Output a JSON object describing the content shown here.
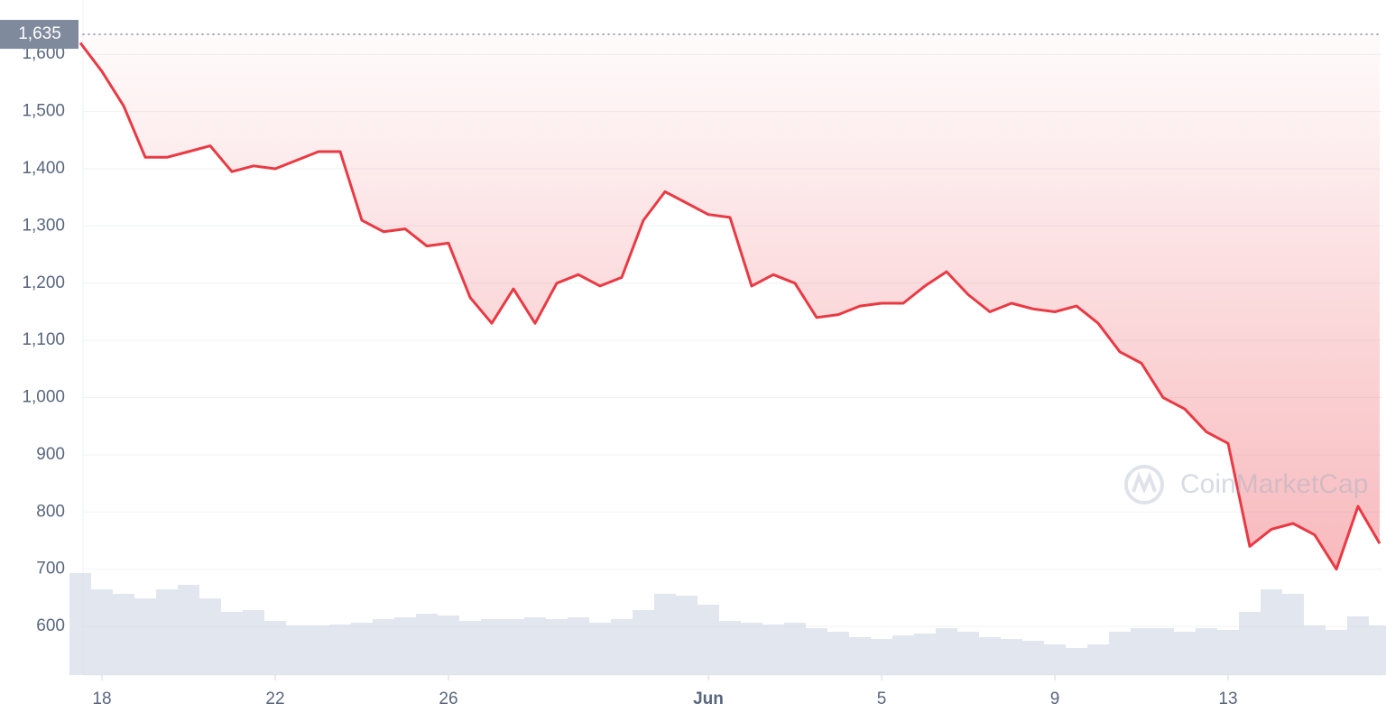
{
  "chart_data": {
    "type": "line",
    "categories": [
      null,
      "18",
      null,
      null,
      null,
      null,
      null,
      null,
      null,
      "22",
      null,
      null,
      null,
      null,
      null,
      null,
      null,
      "26",
      null,
      null,
      null,
      null,
      null,
      null,
      null,
      null,
      null,
      null,
      null,
      "Jun",
      null,
      null,
      null,
      null,
      null,
      null,
      null,
      "5",
      null,
      null,
      null,
      null,
      null,
      null,
      null,
      "9",
      null,
      null,
      null,
      null,
      null,
      null,
      null,
      "13",
      null,
      null,
      null,
      null,
      null,
      null,
      null
    ],
    "series": [
      {
        "name": "Price",
        "color": "#ea3943",
        "values": [
          1620,
          1570,
          1510,
          1420,
          1420,
          1430,
          1440,
          1395,
          1405,
          1400,
          1415,
          1430,
          1430,
          1310,
          1290,
          1295,
          1265,
          1270,
          1175,
          1130,
          1190,
          1130,
          1200,
          1215,
          1195,
          1210,
          1310,
          1360,
          1340,
          1320,
          1315,
          1195,
          1215,
          1200,
          1140,
          1145,
          1160,
          1165,
          1165,
          1195,
          1220,
          1180,
          1150,
          1165,
          1155,
          1150,
          1160,
          1130,
          1080,
          1060,
          1000,
          980,
          940,
          920,
          740,
          770,
          780,
          760,
          700,
          810,
          745
        ]
      },
      {
        "name": "Volume",
        "color": "#cfd6e4",
        "values": [
          113,
          95,
          90,
          85,
          95,
          100,
          85,
          70,
          72,
          60,
          55,
          55,
          56,
          58,
          62,
          64,
          68,
          66,
          60,
          62,
          62,
          64,
          62,
          64,
          58,
          62,
          72,
          90,
          88,
          78,
          60,
          58,
          56,
          58,
          52,
          48,
          42,
          40,
          44,
          46,
          52,
          48,
          42,
          40,
          38,
          34,
          30,
          34,
          48,
          52,
          52,
          48,
          52,
          50,
          70,
          95,
          90,
          55,
          50,
          65,
          55
        ]
      }
    ],
    "ylim": [
      515,
      1695
    ],
    "yticks": [
      {
        "value": 600,
        "label": "600"
      },
      {
        "value": 700,
        "label": "700"
      },
      {
        "value": 800,
        "label": "800"
      },
      {
        "value": 900,
        "label": "900"
      },
      {
        "value": 1000,
        "label": "1,000"
      },
      {
        "value": 1100,
        "label": "1,100"
      },
      {
        "value": 1200,
        "label": "1,200"
      },
      {
        "value": 1300,
        "label": "1,300"
      },
      {
        "value": 1400,
        "label": "1,400"
      },
      {
        "value": 1500,
        "label": "1,500"
      },
      {
        "value": 1600,
        "label": "1,600"
      }
    ],
    "reference_line": {
      "value": 1635,
      "label": "1,635"
    },
    "grid": true,
    "watermark": "CoinMarketCap"
  }
}
